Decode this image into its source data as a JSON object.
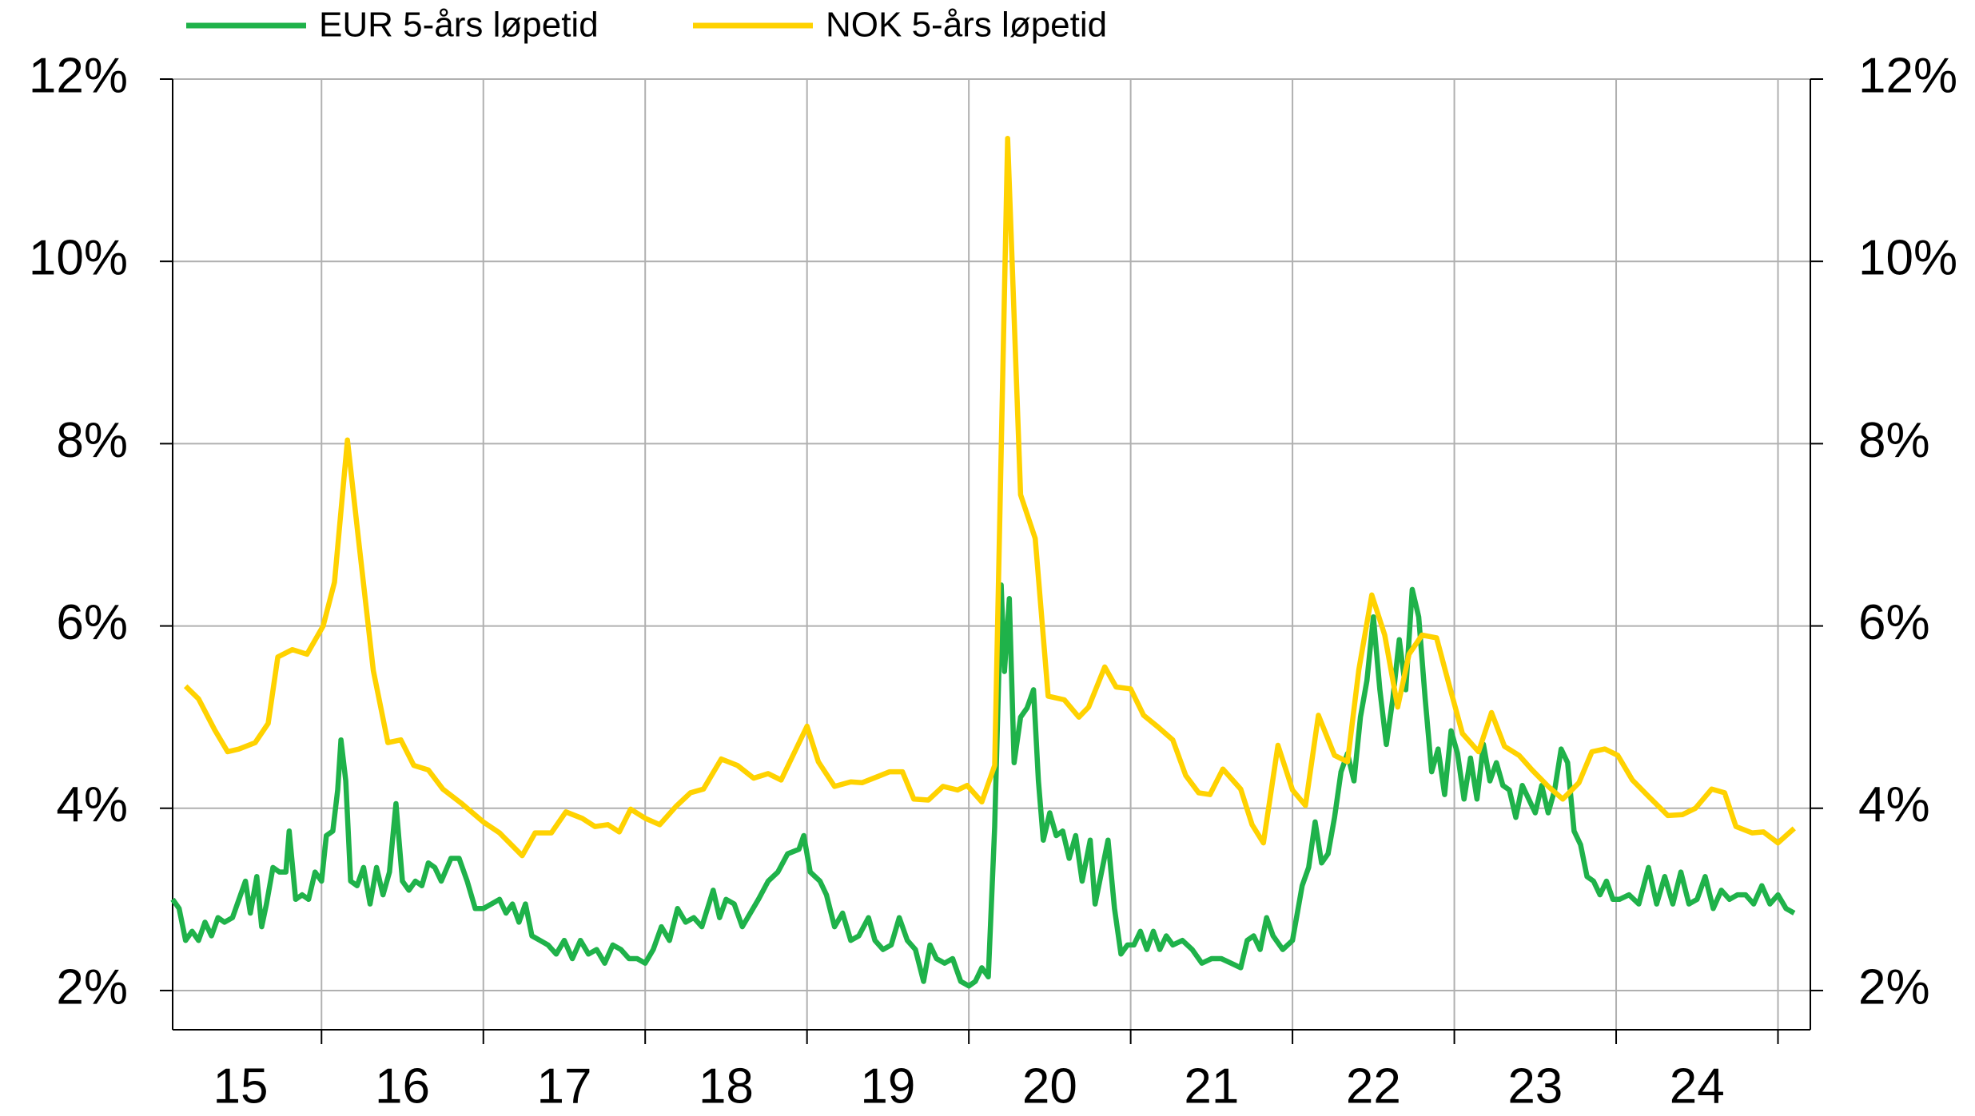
{
  "chart_data": {
    "type": "line",
    "xlim": [
      2015.08,
      2025.2
    ],
    "xticks": [
      {
        "value": 2015.5,
        "label": "15"
      },
      {
        "value": 2016.5,
        "label": "16"
      },
      {
        "value": 2017.5,
        "label": "17"
      },
      {
        "value": 2018.5,
        "label": "18"
      },
      {
        "value": 2019.5,
        "label": "19"
      },
      {
        "value": 2020.5,
        "label": "20"
      },
      {
        "value": 2021.5,
        "label": "21"
      },
      {
        "value": 2022.5,
        "label": "22"
      },
      {
        "value": 2023.5,
        "label": "23"
      },
      {
        "value": 2024.5,
        "label": "24"
      }
    ],
    "xgrid": [
      2016,
      2017,
      2018,
      2019,
      2020,
      2021,
      2022,
      2023,
      2024,
      2025
    ],
    "ylim": [
      1.57,
      12
    ],
    "yticks": [
      {
        "value": 2,
        "label": "2%"
      },
      {
        "value": 4,
        "label": "4%"
      },
      {
        "value": 6,
        "label": "6%"
      },
      {
        "value": 8,
        "label": "8%"
      },
      {
        "value": 10,
        "label": "10%"
      },
      {
        "value": 12,
        "label": "12%"
      }
    ],
    "y2lim": [
      1.57,
      12
    ],
    "y2ticks": [
      {
        "value": 2,
        "label": "2%"
      },
      {
        "value": 4,
        "label": "4%"
      },
      {
        "value": 6,
        "label": "6%"
      },
      {
        "value": 8,
        "label": "8%"
      },
      {
        "value": 10,
        "label": "10%"
      },
      {
        "value": 12,
        "label": "12%"
      }
    ],
    "grid": true,
    "legend": "top-left",
    "series": [
      {
        "name": "EUR 5-års løpetid",
        "color": "#1fb24a",
        "x": [
          2015.08,
          2015.12,
          2015.16,
          2015.2,
          2015.24,
          2015.28,
          2015.32,
          2015.36,
          2015.4,
          2015.45,
          2015.5,
          2015.53,
          2015.56,
          2015.6,
          2015.63,
          2015.66,
          2015.7,
          2015.74,
          2015.78,
          2015.8,
          2015.84,
          2015.88,
          2015.92,
          2015.96,
          2016.0,
          2016.03,
          2016.07,
          2016.1,
          2016.12,
          2016.15,
          2016.18,
          2016.22,
          2016.26,
          2016.3,
          2016.34,
          2016.38,
          2016.42,
          2016.46,
          2016.5,
          2016.54,
          2016.58,
          2016.62,
          2016.66,
          2016.7,
          2016.74,
          2016.8,
          2016.85,
          2016.9,
          2016.95,
          2017.0,
          2017.05,
          2017.1,
          2017.14,
          2017.18,
          2017.22,
          2017.26,
          2017.3,
          2017.35,
          2017.4,
          2017.45,
          2017.5,
          2017.55,
          2017.6,
          2017.65,
          2017.7,
          2017.75,
          2017.8,
          2017.85,
          2017.9,
          2017.95,
          2018.0,
          2018.05,
          2018.1,
          2018.15,
          2018.2,
          2018.25,
          2018.3,
          2018.35,
          2018.42,
          2018.46,
          2018.5,
          2018.55,
          2018.6,
          2018.65,
          2018.7,
          2018.76,
          2018.82,
          2018.88,
          2018.95,
          2018.98,
          2019.02,
          2019.08,
          2019.12,
          2019.17,
          2019.22,
          2019.27,
          2019.32,
          2019.38,
          2019.42,
          2019.47,
          2019.52,
          2019.57,
          2019.62,
          2019.67,
          2019.72,
          2019.76,
          2019.8,
          2019.85,
          2019.9,
          2019.95,
          2020.0,
          2020.04,
          2020.08,
          2020.12,
          2020.16,
          2020.2,
          2020.22,
          2020.25,
          2020.28,
          2020.32,
          2020.36,
          2020.4,
          2020.43,
          2020.46,
          2020.5,
          2020.54,
          2020.58,
          2020.62,
          2020.66,
          2020.7,
          2020.75,
          2020.78,
          2020.82,
          2020.86,
          2020.9,
          2020.94,
          2020.98,
          2021.02,
          2021.06,
          2021.1,
          2021.14,
          2021.18,
          2021.22,
          2021.26,
          2021.32,
          2021.38,
          2021.44,
          2021.5,
          2021.56,
          2021.62,
          2021.68,
          2021.72,
          2021.76,
          2021.8,
          2021.84,
          2021.88,
          2021.94,
          2022.0,
          2022.06,
          2022.1,
          2022.14,
          2022.18,
          2022.22,
          2022.26,
          2022.3,
          2022.34,
          2022.38,
          2022.42,
          2022.46,
          2022.5,
          2022.54,
          2022.58,
          2022.62,
          2022.66,
          2022.7,
          2022.74,
          2022.78,
          2022.82,
          2022.86,
          2022.9,
          2022.94,
          2022.98,
          2023.02,
          2023.06,
          2023.1,
          2023.14,
          2023.18,
          2023.22,
          2023.26,
          2023.3,
          2023.34,
          2023.38,
          2023.42,
          2023.46,
          2023.5,
          2023.54,
          2023.58,
          2023.62,
          2023.66,
          2023.7,
          2023.74,
          2023.78,
          2023.82,
          2023.86,
          2023.9,
          2023.94,
          2023.98,
          2024.02,
          2024.08,
          2024.14,
          2024.2,
          2024.25,
          2024.3,
          2024.35,
          2024.4,
          2024.45,
          2024.5,
          2024.55,
          2024.6,
          2024.65,
          2024.7,
          2024.75,
          2024.8,
          2024.85,
          2024.9,
          2024.95,
          2025.0,
          2025.05,
          2025.1
        ],
        "values": [
          3.0,
          2.9,
          2.55,
          2.65,
          2.55,
          2.75,
          2.6,
          2.8,
          2.75,
          2.8,
          3.05,
          3.2,
          2.85,
          3.25,
          2.7,
          2.95,
          3.35,
          3.3,
          3.3,
          3.75,
          3.0,
          3.05,
          3.0,
          3.3,
          3.2,
          3.7,
          3.75,
          4.2,
          4.75,
          4.3,
          3.2,
          3.15,
          3.35,
          2.95,
          3.35,
          3.05,
          3.3,
          4.05,
          3.2,
          3.1,
          3.2,
          3.15,
          3.4,
          3.35,
          3.2,
          3.45,
          3.45,
          3.2,
          2.9,
          2.9,
          2.95,
          3.0,
          2.85,
          2.95,
          2.75,
          2.95,
          2.6,
          2.55,
          2.5,
          2.4,
          2.55,
          2.35,
          2.55,
          2.4,
          2.45,
          2.3,
          2.5,
          2.45,
          2.35,
          2.35,
          2.3,
          2.45,
          2.7,
          2.55,
          2.9,
          2.75,
          2.8,
          2.7,
          3.1,
          2.8,
          3.0,
          2.95,
          2.7,
          2.85,
          3.0,
          3.2,
          3.3,
          3.5,
          3.55,
          3.7,
          3.3,
          3.2,
          3.05,
          2.7,
          2.85,
          2.55,
          2.6,
          2.8,
          2.55,
          2.45,
          2.5,
          2.8,
          2.55,
          2.45,
          2.1,
          2.5,
          2.35,
          2.3,
          2.35,
          2.1,
          2.05,
          2.1,
          2.25,
          2.15,
          3.8,
          6.45,
          5.5,
          6.3,
          4.5,
          5.0,
          5.1,
          5.3,
          4.3,
          3.65,
          3.95,
          3.7,
          3.75,
          3.45,
          3.7,
          3.2,
          3.65,
          2.95,
          3.3,
          3.65,
          2.9,
          2.4,
          2.5,
          2.5,
          2.65,
          2.45,
          2.65,
          2.45,
          2.6,
          2.5,
          2.55,
          2.45,
          2.3,
          2.35,
          2.35,
          2.3,
          2.25,
          2.55,
          2.6,
          2.45,
          2.8,
          2.6,
          2.45,
          2.55,
          3.15,
          3.35,
          3.85,
          3.4,
          3.5,
          3.9,
          4.4,
          4.6,
          4.3,
          5.0,
          5.4,
          6.1,
          5.3,
          4.7,
          5.2,
          5.85,
          5.3,
          6.4,
          6.1,
          5.2,
          4.4,
          4.65,
          4.15,
          4.85,
          4.6,
          4.1,
          4.55,
          4.1,
          4.7,
          4.3,
          4.5,
          4.25,
          4.2,
          3.9,
          4.25,
          4.1,
          3.95,
          4.25,
          3.95,
          4.2,
          4.65,
          4.5,
          3.75,
          3.6,
          3.25,
          3.2,
          3.05,
          3.2,
          3.0,
          3.0,
          3.05,
          2.95,
          3.35,
          2.95,
          3.25,
          2.95,
          3.3,
          2.95,
          3.0,
          3.25,
          2.9,
          3.1,
          3.0,
          3.05,
          3.05,
          2.95,
          3.15,
          2.95,
          3.05,
          2.9,
          2.85
        ]
      },
      {
        "name": "NOK 5-års løpetid",
        "color": "#ffd200",
        "x": [
          2015.16,
          2015.24,
          2015.34,
          2015.42,
          2015.49,
          2015.59,
          2015.67,
          2015.73,
          2015.82,
          2015.91,
          2016.01,
          2016.08,
          2016.16,
          2016.23,
          2016.32,
          2016.41,
          2016.49,
          2016.57,
          2016.66,
          2016.75,
          2016.86,
          2017.0,
          2017.1,
          2017.24,
          2017.32,
          2017.42,
          2017.51,
          2017.61,
          2017.69,
          2017.77,
          2017.84,
          2017.91,
          2018.0,
          2018.09,
          2018.19,
          2018.28,
          2018.36,
          2018.47,
          2018.57,
          2018.67,
          2018.76,
          2018.84,
          2019.0,
          2019.07,
          2019.17,
          2019.27,
          2019.34,
          2019.44,
          2019.51,
          2019.59,
          2019.66,
          2019.75,
          2019.84,
          2019.93,
          2019.99,
          2020.08,
          2020.16,
          2020.24,
          2020.32,
          2020.41,
          2020.49,
          2020.59,
          2020.68,
          2020.74,
          2020.84,
          2020.91,
          2021.0,
          2021.08,
          2021.17,
          2021.26,
          2021.34,
          2021.42,
          2021.49,
          2021.57,
          2021.68,
          2021.75,
          2021.82,
          2021.91,
          2022.0,
          2022.08,
          2022.16,
          2022.26,
          2022.34,
          2022.41,
          2022.49,
          2022.57,
          2022.65,
          2022.72,
          2022.8,
          2022.89,
          2022.97,
          2023.05,
          2023.15,
          2023.23,
          2023.31,
          2023.4,
          2023.48,
          2023.58,
          2023.67,
          2023.77,
          2023.85,
          2023.93,
          2024.01,
          2024.1,
          2024.2,
          2024.32,
          2024.41,
          2024.49,
          2024.59,
          2024.67,
          2024.74,
          2024.84,
          2024.91,
          2025.0,
          2025.1
        ],
        "values": [
          5.34,
          5.2,
          4.86,
          4.62,
          4.65,
          4.72,
          4.93,
          5.66,
          5.74,
          5.69,
          6.0,
          6.48,
          8.04,
          6.93,
          5.51,
          4.72,
          4.75,
          4.47,
          4.42,
          4.21,
          4.06,
          3.85,
          3.73,
          3.48,
          3.73,
          3.73,
          3.96,
          3.89,
          3.8,
          3.82,
          3.74,
          3.99,
          3.89,
          3.82,
          4.02,
          4.17,
          4.21,
          4.54,
          4.47,
          4.33,
          4.38,
          4.31,
          4.9,
          4.51,
          4.24,
          4.29,
          4.28,
          4.35,
          4.4,
          4.4,
          4.1,
          4.09,
          4.24,
          4.2,
          4.25,
          4.07,
          4.47,
          11.35,
          7.44,
          6.96,
          5.23,
          5.19,
          5.0,
          5.11,
          5.55,
          5.33,
          5.31,
          5.02,
          4.89,
          4.75,
          4.36,
          4.17,
          4.15,
          4.43,
          4.21,
          3.82,
          3.62,
          4.69,
          4.2,
          4.03,
          5.02,
          4.58,
          4.51,
          5.52,
          6.34,
          5.9,
          5.11,
          5.69,
          5.9,
          5.87,
          5.34,
          4.82,
          4.62,
          5.05,
          4.68,
          4.58,
          4.42,
          4.24,
          4.1,
          4.28,
          4.62,
          4.65,
          4.58,
          4.31,
          4.13,
          3.92,
          3.93,
          4.0,
          4.21,
          4.17,
          3.8,
          3.73,
          3.74,
          3.62,
          3.78
        ]
      }
    ]
  }
}
